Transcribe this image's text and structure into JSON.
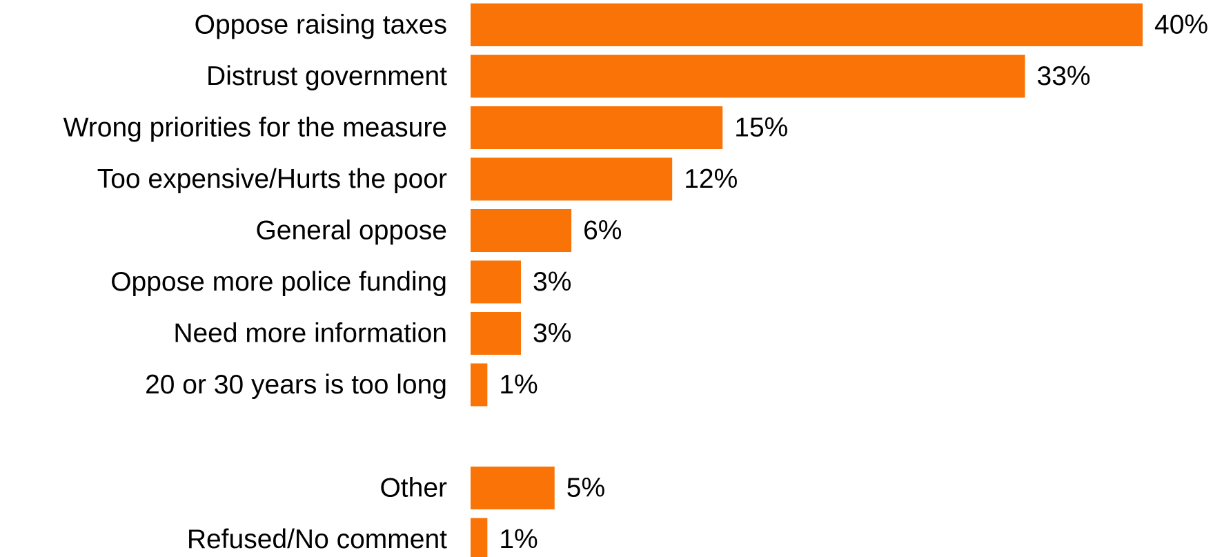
{
  "chart_data": {
    "type": "bar",
    "orientation": "horizontal",
    "title": "",
    "xlabel": "",
    "ylabel": "",
    "bar_color": "#F97306",
    "value_suffix": "%",
    "xlim": [
      0,
      40
    ],
    "grid": false,
    "legend": "none",
    "categories": [
      "Oppose raising taxes",
      "Distrust government",
      "Wrong priorities for the measure",
      "Too expensive/Hurts the poor",
      "General oppose",
      "Oppose more police funding",
      "Need more information",
      "20 or 30 years is too long",
      "Other",
      "Refused/No comment"
    ],
    "values": [
      40,
      33,
      15,
      12,
      6,
      3,
      3,
      1,
      5,
      1
    ],
    "data_labels": [
      "40%",
      "33%",
      "15%",
      "12%",
      "6%",
      "3%",
      "3%",
      "1%",
      "5%",
      "1%"
    ]
  }
}
